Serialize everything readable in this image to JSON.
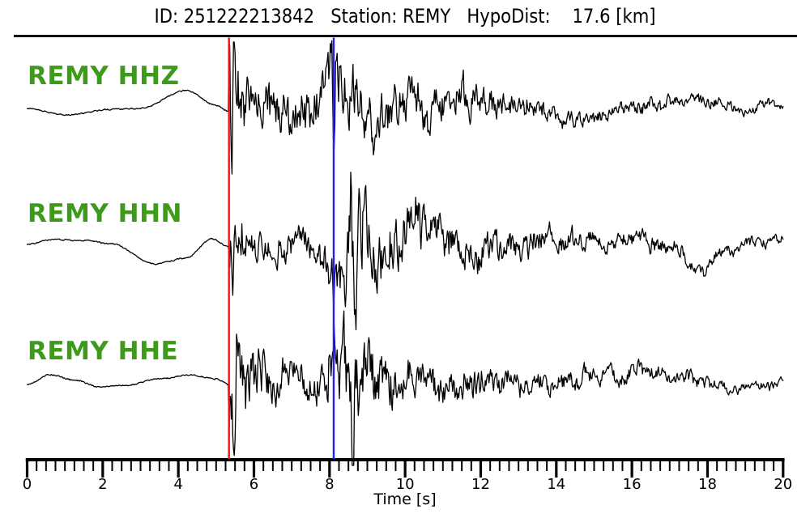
{
  "header": {
    "title_display": "ID: 251222213842   Station: REMY   HypoDist:    17.6 [km]",
    "event_id": "251222213842",
    "station": "REMY",
    "hypodist_km": 17.6
  },
  "colors": {
    "trace": "#000000",
    "p_pick": "#ff0f0f",
    "s_pick": "#1e1eff",
    "trace_label_green": "#3e9a1a",
    "axis": "#000000",
    "divider": "#111111"
  },
  "chart_data": {
    "type": "line",
    "title": "ID: 251222213842   Station: REMY   HypoDist:    17.6 [km]",
    "xlabel": "Time [s]",
    "x_range": [
      0,
      20
    ],
    "x_major_ticks": [
      0,
      2,
      4,
      6,
      8,
      10,
      12,
      14,
      16,
      18,
      20
    ],
    "x_minor_tick_interval": 0.25,
    "grid": false,
    "legend": "trace names shown as green labels at left",
    "picks": [
      {
        "name": "P",
        "time": 5.34,
        "color": "#ff0f0f"
      },
      {
        "name": "S",
        "time": 8.11,
        "color": "#1e1eff"
      }
    ],
    "series": [
      {
        "label": "REMY HHZ",
        "center_y": 132,
        "baseline": [
          [
            0,
            2
          ],
          [
            1.0,
            10
          ],
          [
            2.3,
            3
          ],
          [
            3.0,
            2
          ],
          [
            4.2,
            -20
          ],
          [
            5.0,
            -2
          ],
          [
            5.34,
            6
          ],
          [
            8,
            0
          ],
          [
            10,
            -3
          ],
          [
            12,
            -5
          ],
          [
            13.5,
            6
          ],
          [
            14.5,
            12
          ],
          [
            15.5,
            6
          ],
          [
            16.5,
            -4
          ],
          [
            17.5,
            -9
          ],
          [
            18.3,
            -2
          ],
          [
            19,
            3
          ],
          [
            19.6,
            -2
          ],
          [
            20,
            0
          ]
        ],
        "envelope": [
          [
            5.34,
            52
          ],
          [
            5.55,
            60
          ],
          [
            5.8,
            40
          ],
          [
            6.3,
            34
          ],
          [
            7.0,
            30
          ],
          [
            7.6,
            34
          ],
          [
            8.05,
            42
          ],
          [
            8.2,
            50
          ],
          [
            8.6,
            40
          ],
          [
            9.2,
            42
          ],
          [
            9.8,
            34
          ],
          [
            10.5,
            28
          ],
          [
            11.2,
            26
          ],
          [
            12,
            22
          ],
          [
            12.8,
            17
          ],
          [
            13.6,
            13
          ],
          [
            14.5,
            11
          ],
          [
            15.5,
            10
          ],
          [
            16.5,
            10
          ],
          [
            17.5,
            8
          ],
          [
            18.5,
            7
          ],
          [
            19.3,
            6
          ],
          [
            20,
            6
          ]
        ],
        "spikes": [
          [
            5.42,
            86
          ],
          [
            5.46,
            -42
          ],
          [
            8.06,
            -76
          ],
          [
            8.12,
            72
          ],
          [
            8.16,
            -40
          ],
          [
            8.62,
            -55
          ]
        ]
      },
      {
        "label": "REMY HHN",
        "center_y": 303,
        "baseline": [
          [
            0,
            -1
          ],
          [
            0.7,
            -7
          ],
          [
            1.5,
            -6
          ],
          [
            2.2,
            -2
          ],
          [
            3.4,
            23
          ],
          [
            4.2,
            16
          ],
          [
            4.9,
            -8
          ],
          [
            5.34,
            2
          ],
          [
            9,
            0
          ],
          [
            11,
            -3
          ],
          [
            12.5,
            2
          ],
          [
            14,
            0
          ],
          [
            15.2,
            -4
          ],
          [
            16.2,
            -14
          ],
          [
            17,
            0
          ],
          [
            17.8,
            26
          ],
          [
            18.4,
            6
          ],
          [
            19.2,
            -4
          ],
          [
            20,
            -6
          ]
        ],
        "envelope": [
          [
            5.34,
            40
          ],
          [
            5.6,
            35
          ],
          [
            6.0,
            25
          ],
          [
            6.6,
            20
          ],
          [
            7.2,
            20
          ],
          [
            7.8,
            26
          ],
          [
            8.2,
            42
          ],
          [
            8.5,
            60
          ],
          [
            8.75,
            72
          ],
          [
            9.0,
            55
          ],
          [
            9.4,
            45
          ],
          [
            10,
            36
          ],
          [
            10.8,
            30
          ],
          [
            11.6,
            26
          ],
          [
            12.4,
            22
          ],
          [
            13.2,
            18
          ],
          [
            14,
            16
          ],
          [
            15,
            13
          ],
          [
            16,
            11
          ],
          [
            17,
            10
          ],
          [
            18,
            9
          ],
          [
            19,
            8
          ],
          [
            20,
            7
          ]
        ],
        "spikes": [
          [
            5.44,
            45
          ],
          [
            5.48,
            -38
          ],
          [
            8.56,
            -78
          ],
          [
            8.68,
            94
          ],
          [
            8.78,
            -50
          ]
        ]
      },
      {
        "label": "REMY HHE",
        "center_y": 472,
        "baseline": [
          [
            0,
            3
          ],
          [
            0.6,
            -9
          ],
          [
            1.3,
            -2
          ],
          [
            1.9,
            6
          ],
          [
            2.6,
            4
          ],
          [
            3.5,
            -4
          ],
          [
            4.3,
            -9
          ],
          [
            5.0,
            -4
          ],
          [
            5.34,
            3
          ],
          [
            9,
            0
          ],
          [
            11,
            2
          ],
          [
            12.5,
            4
          ],
          [
            14,
            2
          ],
          [
            15.3,
            -4
          ],
          [
            16.4,
            -10
          ],
          [
            17.2,
            -4
          ],
          [
            18,
            4
          ],
          [
            18.8,
            8
          ],
          [
            19.4,
            2
          ],
          [
            20,
            0
          ]
        ],
        "envelope": [
          [
            5.34,
            55
          ],
          [
            5.6,
            60
          ],
          [
            5.9,
            42
          ],
          [
            6.4,
            30
          ],
          [
            7.0,
            26
          ],
          [
            7.6,
            28
          ],
          [
            8.1,
            45
          ],
          [
            8.5,
            55
          ],
          [
            8.8,
            48
          ],
          [
            9.3,
            38
          ],
          [
            10,
            30
          ],
          [
            10.8,
            24
          ],
          [
            11.6,
            20
          ],
          [
            12.5,
            18
          ],
          [
            13.5,
            15
          ],
          [
            14.5,
            13
          ],
          [
            15.5,
            13
          ],
          [
            16.5,
            12
          ],
          [
            17.5,
            10
          ],
          [
            18.5,
            8
          ],
          [
            19.3,
            7
          ],
          [
            20,
            7
          ]
        ],
        "spikes": [
          [
            5.5,
            72
          ],
          [
            5.56,
            -58
          ],
          [
            8.36,
            -68
          ],
          [
            8.62,
            100
          ],
          [
            8.68,
            -35
          ]
        ]
      }
    ]
  }
}
